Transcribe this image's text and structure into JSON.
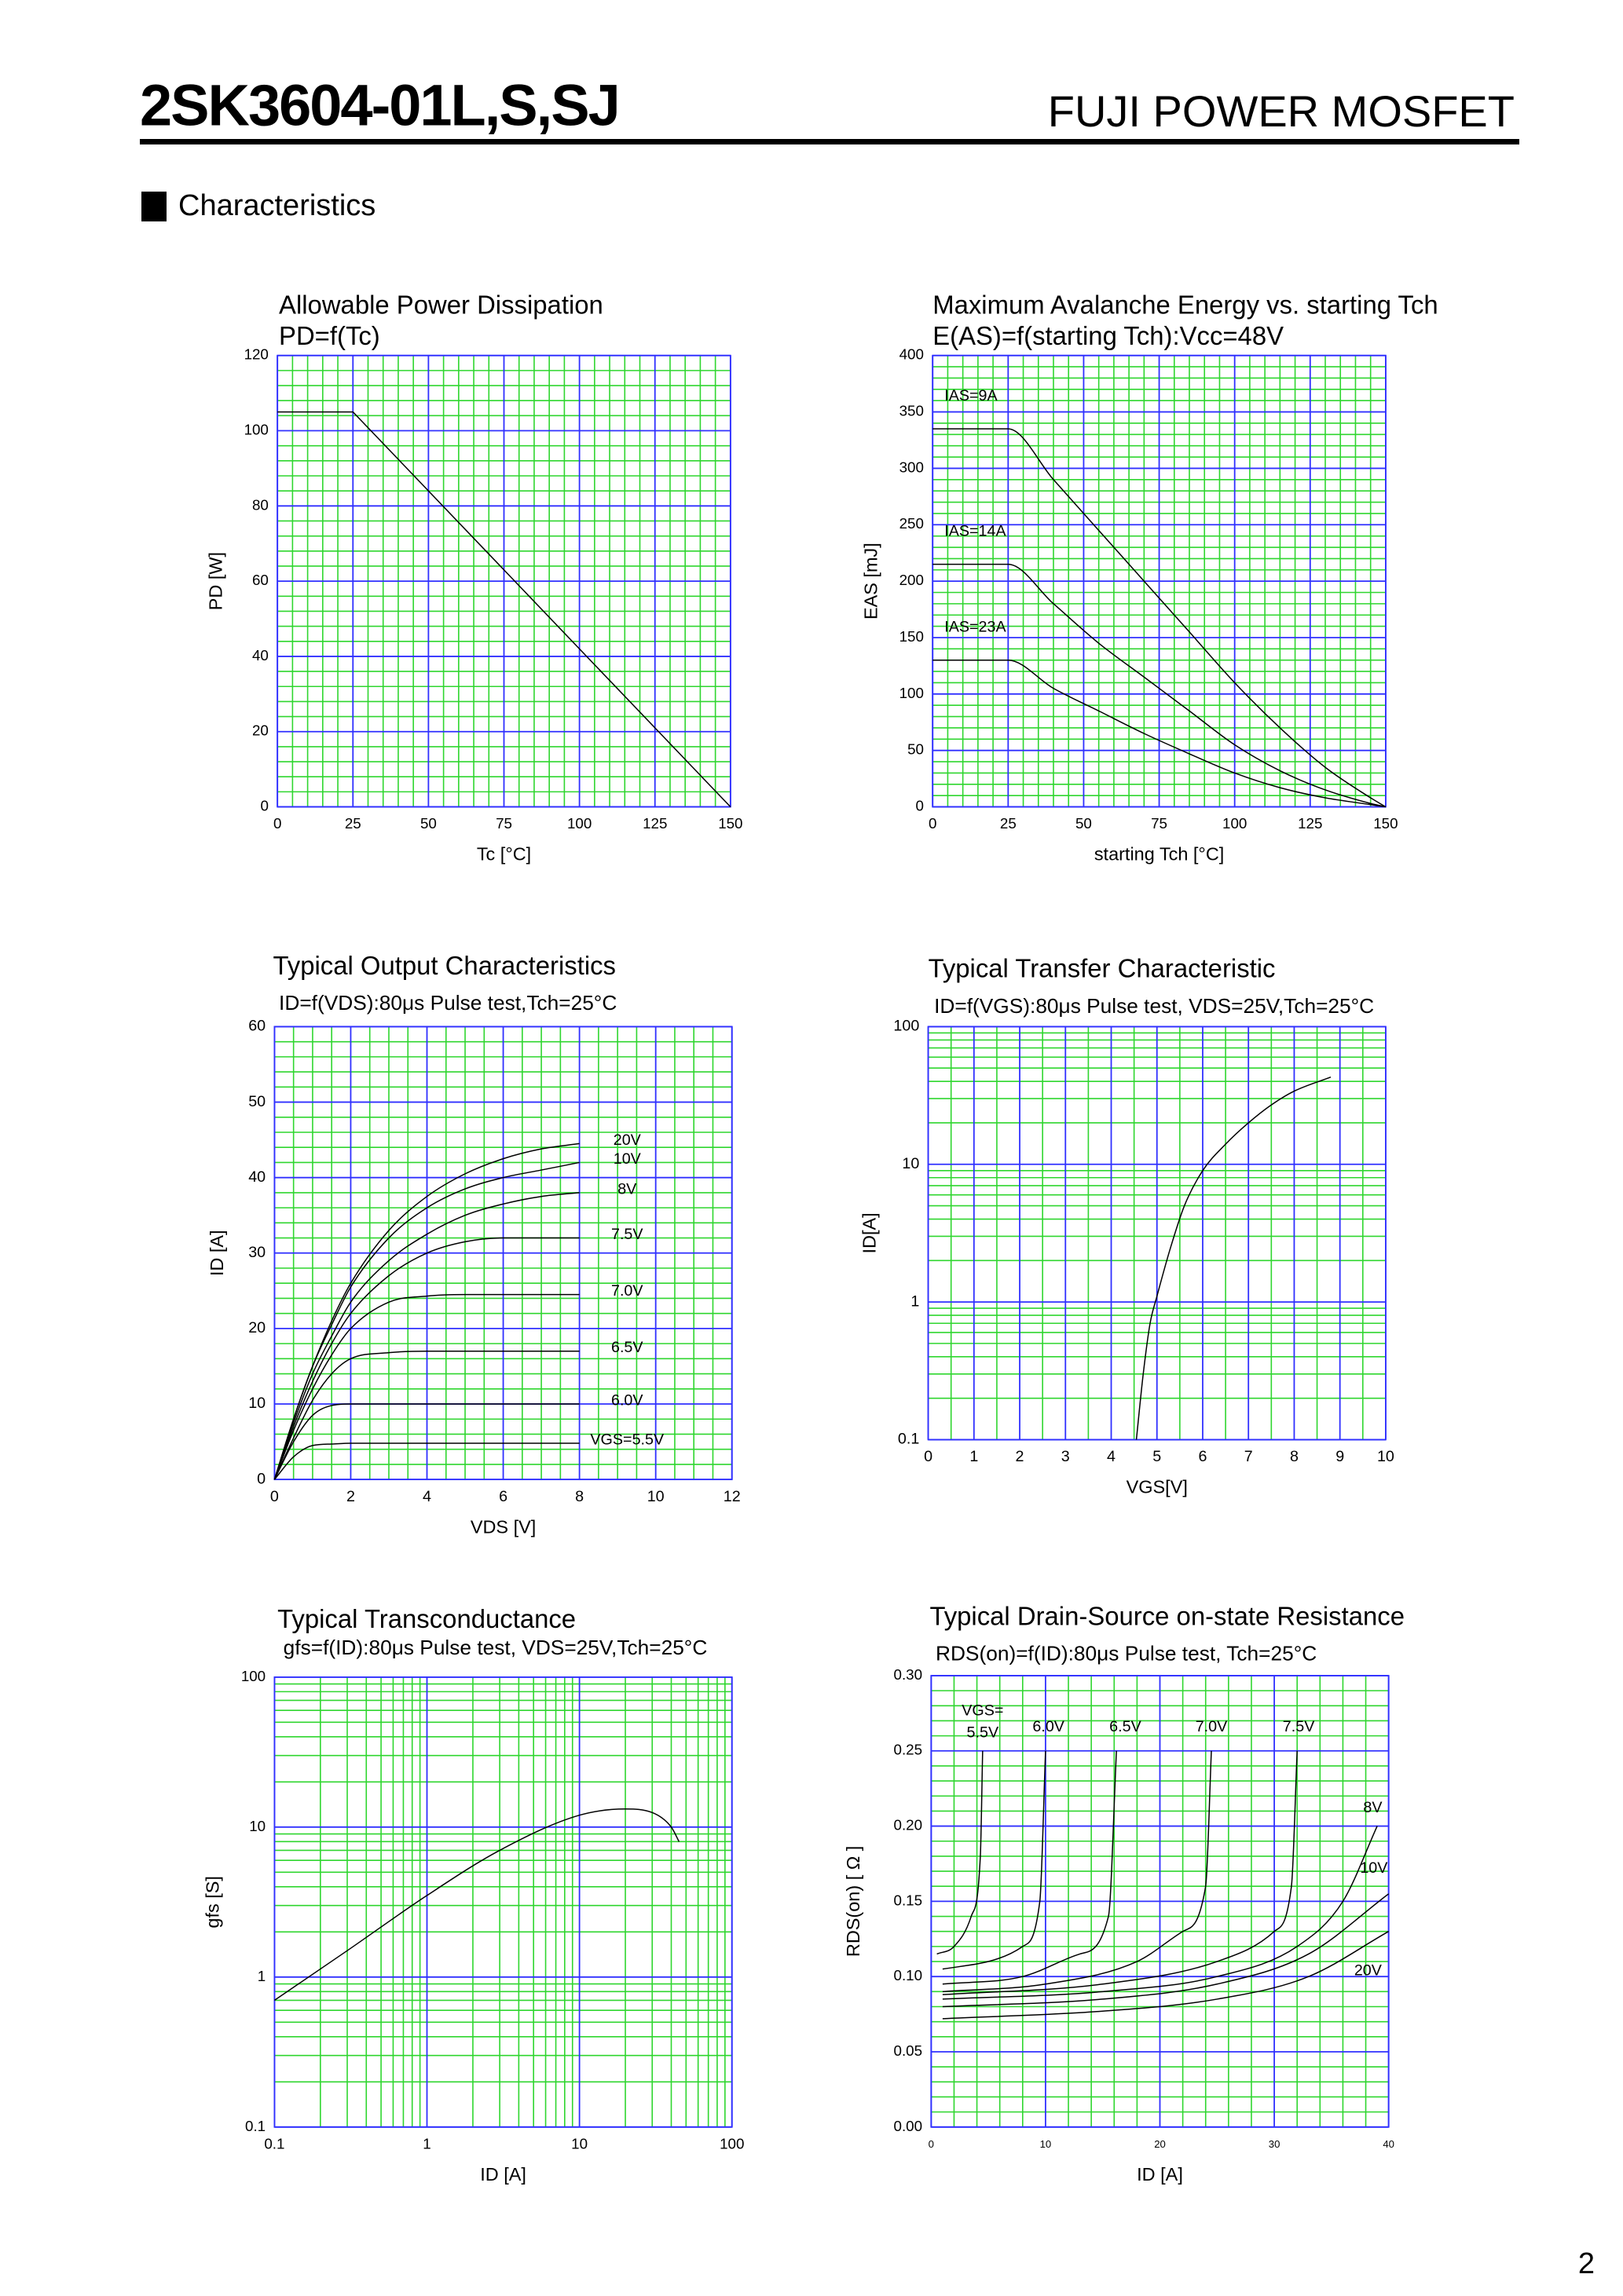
{
  "header": {
    "title": "2SK3604-01L,S,SJ",
    "subtitle": "FUJI POWER MOSFET",
    "section": "Characteristics"
  },
  "page_number": "2",
  "chart_data": [
    {
      "type": "line",
      "title": "Allowable Power Dissipation",
      "subtitle": "PD=f(Tc)",
      "xlabel": "Tc [°C]",
      "ylabel": "PD [W]",
      "xlim": [
        0,
        150
      ],
      "xticks": [
        0,
        25,
        50,
        75,
        100,
        125,
        150
      ],
      "ylim": [
        0,
        120
      ],
      "yticks": [
        0,
        20,
        40,
        60,
        80,
        100,
        120
      ],
      "grid": true,
      "smooth": false,
      "color": "#000000",
      "series": [
        {
          "x": [
            0,
            25,
            150
          ],
          "values": [
            105,
            105,
            0
          ]
        }
      ]
    },
    {
      "type": "line",
      "title": "Maximum Avalanche Energy vs. starting Tch",
      "subtitle": "E(AS)=f(starting Tch):Vcc=48V",
      "xlabel": "starting Tch [°C]",
      "ylabel": "EAS [mJ]",
      "xlim": [
        0,
        150
      ],
      "xticks": [
        0,
        25,
        50,
        75,
        100,
        125,
        150
      ],
      "ylim": [
        0,
        400
      ],
      "yticks": [
        0,
        50,
        100,
        150,
        200,
        250,
        300,
        350,
        400
      ],
      "grid": true,
      "smooth": true,
      "color": "#000000",
      "series": [
        {
          "name": "IAS=9A",
          "x": [
            0,
            25,
            40,
            55,
            70,
            85,
            100,
            115,
            130,
            145,
            150
          ],
          "values": [
            335,
            335,
            290,
            245,
            200,
            155,
            110,
            70,
            35,
            8,
            0
          ]
        },
        {
          "name": "IAS=14A",
          "x": [
            0,
            25,
            40,
            55,
            70,
            85,
            100,
            115,
            130,
            145,
            150
          ],
          "values": [
            215,
            215,
            180,
            145,
            115,
            85,
            55,
            32,
            15,
            3,
            0
          ]
        },
        {
          "name": "IAS=23A",
          "x": [
            0,
            25,
            40,
            55,
            70,
            85,
            100,
            115,
            130,
            145,
            150
          ],
          "values": [
            130,
            130,
            105,
            85,
            65,
            47,
            30,
            17,
            8,
            2,
            0
          ]
        }
      ]
    },
    {
      "type": "line",
      "title": "Typical Output Characteristics",
      "subtitle": "ID=f(VDS):80μs Pulse test,Tch=25°C",
      "xlabel": "VDS [V]",
      "ylabel": "ID [A]",
      "xlim": [
        0,
        12
      ],
      "xticks": [
        0,
        2,
        4,
        6,
        8,
        10,
        12
      ],
      "ylim": [
        0,
        60
      ],
      "yticks": [
        0,
        10,
        20,
        30,
        40,
        50,
        60
      ],
      "grid": true,
      "smooth": true,
      "color": "#000000",
      "series": [
        {
          "name": "20V",
          "x": [
            0,
            0.5,
            1,
            1.5,
            2,
            3,
            4,
            5,
            6,
            7,
            8
          ],
          "values": [
            0,
            8,
            15,
            21,
            26,
            33,
            37.5,
            40.5,
            42.5,
            43.8,
            44.5
          ]
        },
        {
          "name": "10V",
          "x": [
            0,
            0.5,
            1,
            1.5,
            2,
            3,
            4,
            5,
            6,
            7,
            8
          ],
          "values": [
            0,
            8,
            15,
            20.5,
            25.5,
            32,
            36,
            38.5,
            40,
            41,
            42
          ]
        },
        {
          "name": "8V",
          "x": [
            0,
            0.5,
            1,
            1.5,
            2,
            3,
            4,
            5,
            6,
            7,
            8
          ],
          "values": [
            0,
            7.5,
            14,
            19,
            23.5,
            29,
            32.5,
            35,
            36.5,
            37.5,
            38
          ]
        },
        {
          "name": "7.5V",
          "x": [
            0,
            0.5,
            1,
            1.5,
            2,
            3,
            4,
            5,
            6,
            7,
            8
          ],
          "values": [
            0,
            7,
            13,
            18,
            22,
            27,
            30,
            31.5,
            32,
            32,
            32
          ]
        },
        {
          "name": "7.0V",
          "x": [
            0,
            0.5,
            1,
            1.5,
            2,
            3,
            4,
            5,
            6,
            7,
            8
          ],
          "values": [
            0,
            6.5,
            12,
            16.5,
            20,
            23.5,
            24.3,
            24.5,
            24.5,
            24.5,
            24.5
          ]
        },
        {
          "name": "6.5V",
          "x": [
            0,
            0.5,
            1,
            1.5,
            2,
            3,
            4,
            5,
            6,
            7,
            8
          ],
          "values": [
            0,
            5.5,
            10.5,
            14,
            16,
            16.8,
            17,
            17,
            17,
            17,
            17
          ]
        },
        {
          "name": "6.0V",
          "x": [
            0,
            0.5,
            1,
            1.5,
            2,
            3,
            4,
            5,
            6,
            7,
            8
          ],
          "values": [
            0,
            5,
            8.5,
            9.8,
            10,
            10,
            10,
            10,
            10,
            10,
            10
          ]
        },
        {
          "name": "VGS=5.5V",
          "x": [
            0,
            0.5,
            1,
            1.5,
            2,
            3,
            4,
            5,
            6,
            7,
            8
          ],
          "values": [
            0,
            3,
            4.5,
            4.7,
            4.8,
            4.8,
            4.8,
            4.8,
            4.8,
            4.8,
            4.8
          ]
        }
      ]
    },
    {
      "type": "line",
      "title": "Typical Transfer Characteristic",
      "subtitle": "ID=f(VGS):80μs Pulse test, VDS=25V,Tch=25°C",
      "xlabel": "VGS[V]",
      "ylabel": "ID[A]",
      "xlim": [
        0,
        10
      ],
      "xticks": [
        0,
        1,
        2,
        3,
        4,
        5,
        6,
        7,
        8,
        9,
        10
      ],
      "ylim": [
        0.1,
        100
      ],
      "yticks": [
        0.1,
        1,
        10,
        100
      ],
      "yscale": "log",
      "grid": true,
      "smooth": true,
      "color": "#000000",
      "series": [
        {
          "x": [
            4.55,
            4.7,
            4.85,
            5,
            5.3,
            5.6,
            6,
            6.5,
            7,
            7.5,
            8,
            8.8
          ],
          "values": [
            0.1,
            0.3,
            0.7,
            1.1,
            2.5,
            5,
            9,
            14,
            20,
            27,
            34,
            43
          ]
        }
      ]
    },
    {
      "type": "line",
      "title": "Typical Transconductance",
      "subtitle": "gfs=f(ID):80μs Pulse test, VDS=25V,Tch=25°C",
      "xlabel": "ID [A]",
      "ylabel": "gfs [S]",
      "xlim": [
        0.1,
        100
      ],
      "xticks": [
        0.1,
        1,
        10,
        100
      ],
      "xscale": "log",
      "ylim": [
        0.1,
        100
      ],
      "yticks": [
        0.1,
        1,
        10,
        100
      ],
      "yscale": "log",
      "grid": true,
      "smooth": true,
      "color": "#000000",
      "series": [
        {
          "x": [
            0.1,
            0.3,
            1,
            3,
            10,
            20,
            30,
            40,
            45
          ],
          "values": [
            0.7,
            1.5,
            3.5,
            7,
            12,
            13.2,
            12.5,
            10,
            8
          ]
        }
      ]
    },
    {
      "type": "line",
      "title": "Typical Drain-Source on-state Resistance",
      "subtitle": "RDS(on)=f(ID):80μs Pulse test, Tch=25°C",
      "xlabel": "ID [A]",
      "ylabel": "RDS(on) [ Ω ]",
      "legend_title": "VGS=",
      "xlim": [
        0,
        40
      ],
      "xticks": [
        0,
        10,
        20,
        30,
        40
      ],
      "ylim": [
        0,
        0.3
      ],
      "yticks": [
        {
          "value": 0,
          "label": "0.00"
        },
        {
          "value": 0.05,
          "label": "0.05"
        },
        {
          "value": 0.1,
          "label": "0.10"
        },
        {
          "value": 0.15,
          "label": "0.15"
        },
        {
          "value": 0.2,
          "label": "0.20"
        },
        {
          "value": 0.25,
          "label": "0.25"
        },
        {
          "value": 0.3,
          "label": "0.30"
        }
      ],
      "grid": true,
      "smooth": true,
      "color": "#000000",
      "series": [
        {
          "name": "5.5V",
          "x": [
            0.5,
            2,
            3.5,
            4.3,
            4.5
          ],
          "values": [
            0.115,
            0.12,
            0.14,
            0.18,
            0.25
          ]
        },
        {
          "name": "6.0V",
          "x": [
            1,
            5,
            8,
            9.5,
            10
          ],
          "values": [
            0.105,
            0.11,
            0.12,
            0.15,
            0.25
          ]
        },
        {
          "name": "6.5V",
          "x": [
            1,
            8,
            13,
            15.5,
            16.2
          ],
          "values": [
            0.095,
            0.1,
            0.115,
            0.14,
            0.25
          ]
        },
        {
          "name": "7.0V",
          "x": [
            1,
            10,
            18,
            22,
            24,
            24.5
          ],
          "values": [
            0.09,
            0.095,
            0.11,
            0.13,
            0.16,
            0.25
          ]
        },
        {
          "name": "7.5V",
          "x": [
            1,
            15,
            25,
            30,
            31.5,
            32
          ],
          "values": [
            0.088,
            0.095,
            0.11,
            0.13,
            0.16,
            0.25
          ]
        },
        {
          "name": "8V",
          "x": [
            1,
            15,
            25,
            32,
            36,
            39
          ],
          "values": [
            0.085,
            0.09,
            0.1,
            0.12,
            0.15,
            0.2
          ]
        },
        {
          "name": "10V",
          "x": [
            1,
            15,
            25,
            33,
            40
          ],
          "values": [
            0.08,
            0.085,
            0.095,
            0.115,
            0.155
          ]
        },
        {
          "name": "20V",
          "x": [
            1,
            15,
            25,
            33,
            40
          ],
          "values": [
            0.072,
            0.077,
            0.085,
            0.1,
            0.13
          ]
        }
      ]
    }
  ]
}
